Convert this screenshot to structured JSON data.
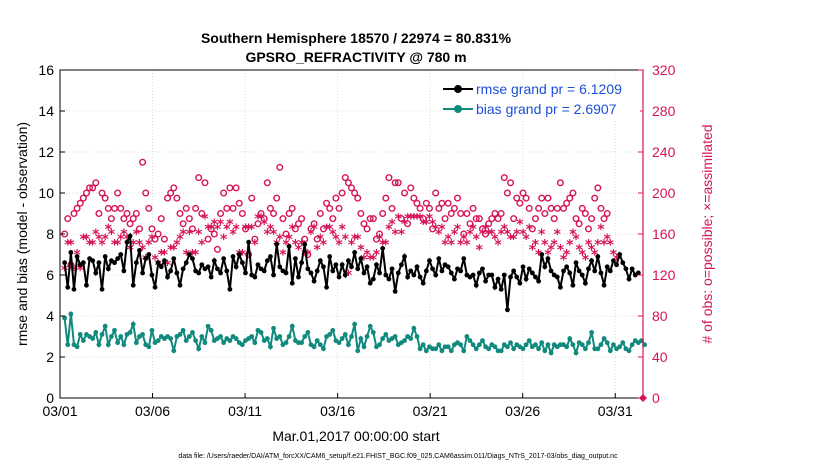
{
  "chart_data": {
    "type": "line",
    "title": "Southern Hemisphere 18570 / 22974 = 80.831%",
    "subtitle": "GPSRO_REFRACTIVITY @ 780 m",
    "xlabel": "Mar.01,2017 00:00:00 start",
    "ylabel": "rmse and bias (model - observation)",
    "y2label": "# of obs: o=possible; ×=assimilated",
    "footer": "data file: /Users/raeder/DAI/ATM_forcXX/CAM6_setup/f.e21.FHIST_BGC.f09_025.CAM6assim.011/Diags_NTrS_2017-03/obs_diag_output.nc",
    "xlim": [
      0,
      31.5
    ],
    "ylim": [
      0,
      16
    ],
    "y2lim": [
      0,
      320
    ],
    "x_tick_values": [
      0,
      5,
      10,
      15,
      20,
      25,
      30
    ],
    "x_tick_labels": [
      "03/01",
      "03/06",
      "03/11",
      "03/16",
      "03/21",
      "03/26",
      "03/31"
    ],
    "y_tick_labels": [
      "0",
      "2",
      "4",
      "6",
      "8",
      "10",
      "12",
      "14",
      "16"
    ],
    "y2_tick_labels": [
      "0",
      "40",
      "80",
      "120",
      "160",
      "200",
      "240",
      "280",
      "320"
    ],
    "legend_position": "top-right",
    "grid": true,
    "colors": {
      "rmse": "#000000",
      "bias": "#118a7e",
      "obs": "#d6145a",
      "axis2": "#d6145a",
      "legend_text": "#1a4fd6"
    },
    "series": [
      {
        "name": "rmse grand pr = 6.1209",
        "key": "rmse",
        "values": [
          6.6,
          5.4,
          7.1,
          5.3,
          6.9,
          6.5,
          6.6,
          5.5,
          6.8,
          6.7,
          6.1,
          6.6,
          5.3,
          6.9,
          6.3,
          6.7,
          6.6,
          6.8,
          7.0,
          6.2,
          7.6,
          7.9,
          5.5,
          6.6,
          7.2,
          6.1,
          6.8,
          7.0,
          6.0,
          5.4,
          6.6,
          6.4,
          6.7,
          5.9,
          6.2,
          6.8,
          6.1,
          5.5,
          6.3,
          6.6,
          7.0,
          6.8,
          6.2,
          6.1,
          6.5,
          6.3,
          6.4,
          5.9,
          6.7,
          6.3,
          6.1,
          6.8,
          6.2,
          5.3,
          6.9,
          6.4,
          7.0,
          6.6,
          6.1,
          7.6,
          6.0,
          5.9,
          6.5,
          6.3,
          6.2,
          6.7,
          6.9,
          6.0,
          7.5,
          6.4,
          6.2,
          6.1,
          7.4,
          5.6,
          6.8,
          5.9,
          6.6,
          7.5,
          6.3,
          6.1,
          5.7,
          6.2,
          6.7,
          6.4,
          5.4,
          6.9,
          6.2,
          6.5,
          5.9,
          6.5,
          6.0,
          6.7,
          6.4,
          7.1,
          6.3,
          6.8,
          6.1,
          6.4,
          5.6,
          5.8,
          6.5,
          6.1,
          7.3,
          6.0,
          5.8,
          6.3,
          5.2,
          6.1,
          6.5,
          6.9,
          5.9,
          6.2,
          6.0,
          6.4,
          5.9,
          5.6,
          6.2,
          6.7,
          6.3,
          6.0,
          6.8,
          6.2,
          6.5,
          6.4,
          6.1,
          5.8,
          6.3,
          6.2,
          6.8,
          6.0,
          5.9,
          6.0,
          5.5,
          6.1,
          6.3,
          5.7,
          6.0,
          6.0,
          5.4,
          5.8,
          5.3,
          6.0,
          4.3,
          5.9,
          6.2,
          5.9,
          5.6,
          6.4,
          5.8,
          6.3,
          6.1,
          5.9,
          5.7,
          7.0,
          6.4,
          6.8,
          6.2,
          6.0,
          5.9,
          5.4,
          6.2,
          6.4,
          6.1,
          5.5,
          6.6,
          6.2,
          6.0,
          5.6,
          6.3,
          6.7,
          6.2,
          6.9,
          6.1,
          5.5,
          6.4,
          6.2,
          6.7,
          6.5,
          7.0,
          6.6,
          6.3,
          5.8,
          6.3,
          6.0,
          6.1
        ]
      },
      {
        "name": "bias grand pr = 2.6907",
        "key": "bias",
        "values": [
          3.9,
          2.6,
          4.1,
          2.6,
          2.5,
          3.1,
          2.8,
          3.1,
          3.0,
          2.9,
          3.2,
          2.6,
          3.1,
          3.5,
          2.6,
          3.0,
          3.3,
          2.7,
          3.0,
          2.6,
          3.1,
          3.2,
          3.6,
          2.7,
          3.0,
          3.1,
          2.6,
          2.5,
          3.3,
          2.7,
          2.8,
          3.0,
          2.9,
          3.0,
          2.9,
          2.3,
          3.0,
          3.1,
          3.3,
          2.8,
          3.0,
          3.2,
          2.8,
          2.4,
          3.0,
          2.7,
          3.5,
          3.3,
          2.8,
          2.9,
          3.0,
          2.7,
          2.9,
          2.8,
          3.0,
          2.9,
          2.7,
          2.6,
          2.8,
          2.9,
          3.0,
          2.7,
          3.3,
          3.2,
          2.8,
          2.9,
          2.5,
          3.4,
          2.9,
          3.0,
          2.6,
          2.7,
          3.0,
          3.5,
          2.8,
          2.7,
          2.7,
          3.0,
          3.2,
          2.6,
          2.5,
          2.8,
          2.6,
          2.4,
          3.0,
          3.1,
          3.3,
          2.8,
          2.7,
          2.9,
          3.1,
          2.6,
          3.0,
          3.6,
          2.3,
          2.9,
          2.5,
          3.0,
          3.5,
          3.2,
          2.5,
          2.6,
          2.9,
          3.1,
          2.8,
          2.9,
          3.0,
          2.6,
          2.7,
          2.8,
          3.0,
          2.9,
          3.4,
          3.0,
          2.4,
          2.6,
          2.3,
          2.5,
          2.4,
          2.4,
          2.6,
          2.3,
          2.5,
          2.5,
          2.3,
          2.6,
          2.7,
          2.6,
          2.3,
          3.0,
          2.8,
          2.6,
          2.4,
          2.6,
          2.8,
          2.5,
          2.4,
          2.6,
          2.5,
          2.3,
          2.3,
          2.6,
          2.5,
          2.7,
          2.4,
          2.6,
          2.5,
          2.4,
          2.6,
          2.8,
          2.5,
          2.6,
          2.4,
          2.7,
          2.3,
          2.6,
          2.2,
          2.6,
          2.5,
          2.6,
          2.6,
          2.5,
          2.9,
          2.6,
          2.2,
          2.7,
          2.6,
          2.4,
          2.7,
          3.2,
          2.4,
          2.4,
          2.6,
          2.9,
          2.7,
          2.3,
          2.6,
          2.4,
          2.5,
          2.7,
          2.4,
          2.3,
          2.6,
          2.8,
          2.7,
          2.8,
          2.6
        ]
      },
      {
        "name": "possible",
        "key": "possible",
        "marker": "circle",
        "values": [
          160,
          175,
          130,
          180,
          185,
          190,
          195,
          200,
          205,
          205,
          210,
          180,
          200,
          195,
          185,
          175,
          185,
          200,
          185,
          175,
          180,
          170,
          175,
          180,
          165,
          230,
          200,
          185,
          165,
          155,
          160,
          175,
          155,
          195,
          200,
          205,
          195,
          180,
          170,
          185,
          175,
          165,
          185,
          215,
          180,
          210,
          155,
          165,
          160,
          145,
          180,
          200,
          185,
          205,
          185,
          205,
          190,
          180,
          165,
          140,
          195,
          155,
          170,
          180,
          175,
          210,
          185,
          180,
          195,
          225,
          175,
          160,
          180,
          185,
          165,
          170,
          175,
          155,
          140,
          165,
          170,
          155,
          180,
          165,
          190,
          185,
          175,
          195,
          185,
          200,
          215,
          210,
          205,
          200,
          195,
          180,
          170,
          165,
          175,
          175,
          155,
          160,
          180,
          195,
          215,
          185,
          210,
          210,
          175,
          200,
          170,
          205,
          195,
          190,
          185,
          175,
          190,
          185,
          165,
          200,
          185,
          190,
          175,
          190,
          180,
          185,
          195,
          180,
          160,
          180,
          170,
          185,
          175,
          175,
          165,
          160,
          170,
          175,
          180,
          175,
          180,
          215,
          200,
          210,
          175,
          195,
          190,
          200,
          195,
          185,
          165,
          175,
          185,
          195,
          180,
          195,
          185,
          175,
          185,
          210,
          185,
          190,
          195,
          200,
          175,
          170,
          185,
          180,
          165,
          175,
          195,
          205,
          185,
          175,
          180
        ]
      },
      {
        "name": "assimilated",
        "key": "assimilated",
        "marker": "asterisk",
        "values": [
          125,
          150,
          150,
          125,
          140,
          125,
          155,
          155,
          150,
          150,
          160,
          155,
          150,
          155,
          165,
          160,
          150,
          150,
          155,
          160,
          155,
          145,
          150,
          160,
          150,
          145,
          135,
          150,
          155,
          135,
          130,
          140,
          140,
          130,
          145,
          145,
          150,
          155,
          160,
          140,
          160,
          140,
          140,
          160,
          150,
          175,
          165,
          165,
          170,
          165,
          170,
          155,
          165,
          170,
          160,
          165,
          140,
          140,
          165,
          165,
          165,
          150,
          175,
          175,
          170,
          160,
          165,
          160,
          150,
          155,
          140,
          150,
          155,
          165,
          150,
          145,
          150,
          140,
          140,
          160,
          165,
          145,
          155,
          150,
          165,
          165,
          160,
          155,
          150,
          165,
          155,
          120,
          150,
          155,
          155,
          145,
          135,
          140,
          135,
          135,
          140,
          155,
          150,
          150,
          165,
          170,
          160,
          175,
          160,
          170,
          175,
          175,
          175,
          175,
          175,
          170,
          170,
          175,
          170,
          165,
          160,
          165,
          150,
          155,
          150,
          160,
          165,
          150,
          155,
          150,
          160,
          165,
          155,
          145,
          160,
          165,
          160,
          160,
          155,
          150,
          160,
          165,
          160,
          155,
          155,
          160,
          170,
          160,
          155,
          165,
          145,
          150,
          140,
          160,
          150,
          140,
          145,
          150,
          160,
          145,
          135,
          140,
          150,
          160,
          155,
          145,
          140,
          135,
          150,
          145,
          140,
          150,
          165,
          150,
          155,
          150,
          140,
          135
        ]
      }
    ]
  }
}
